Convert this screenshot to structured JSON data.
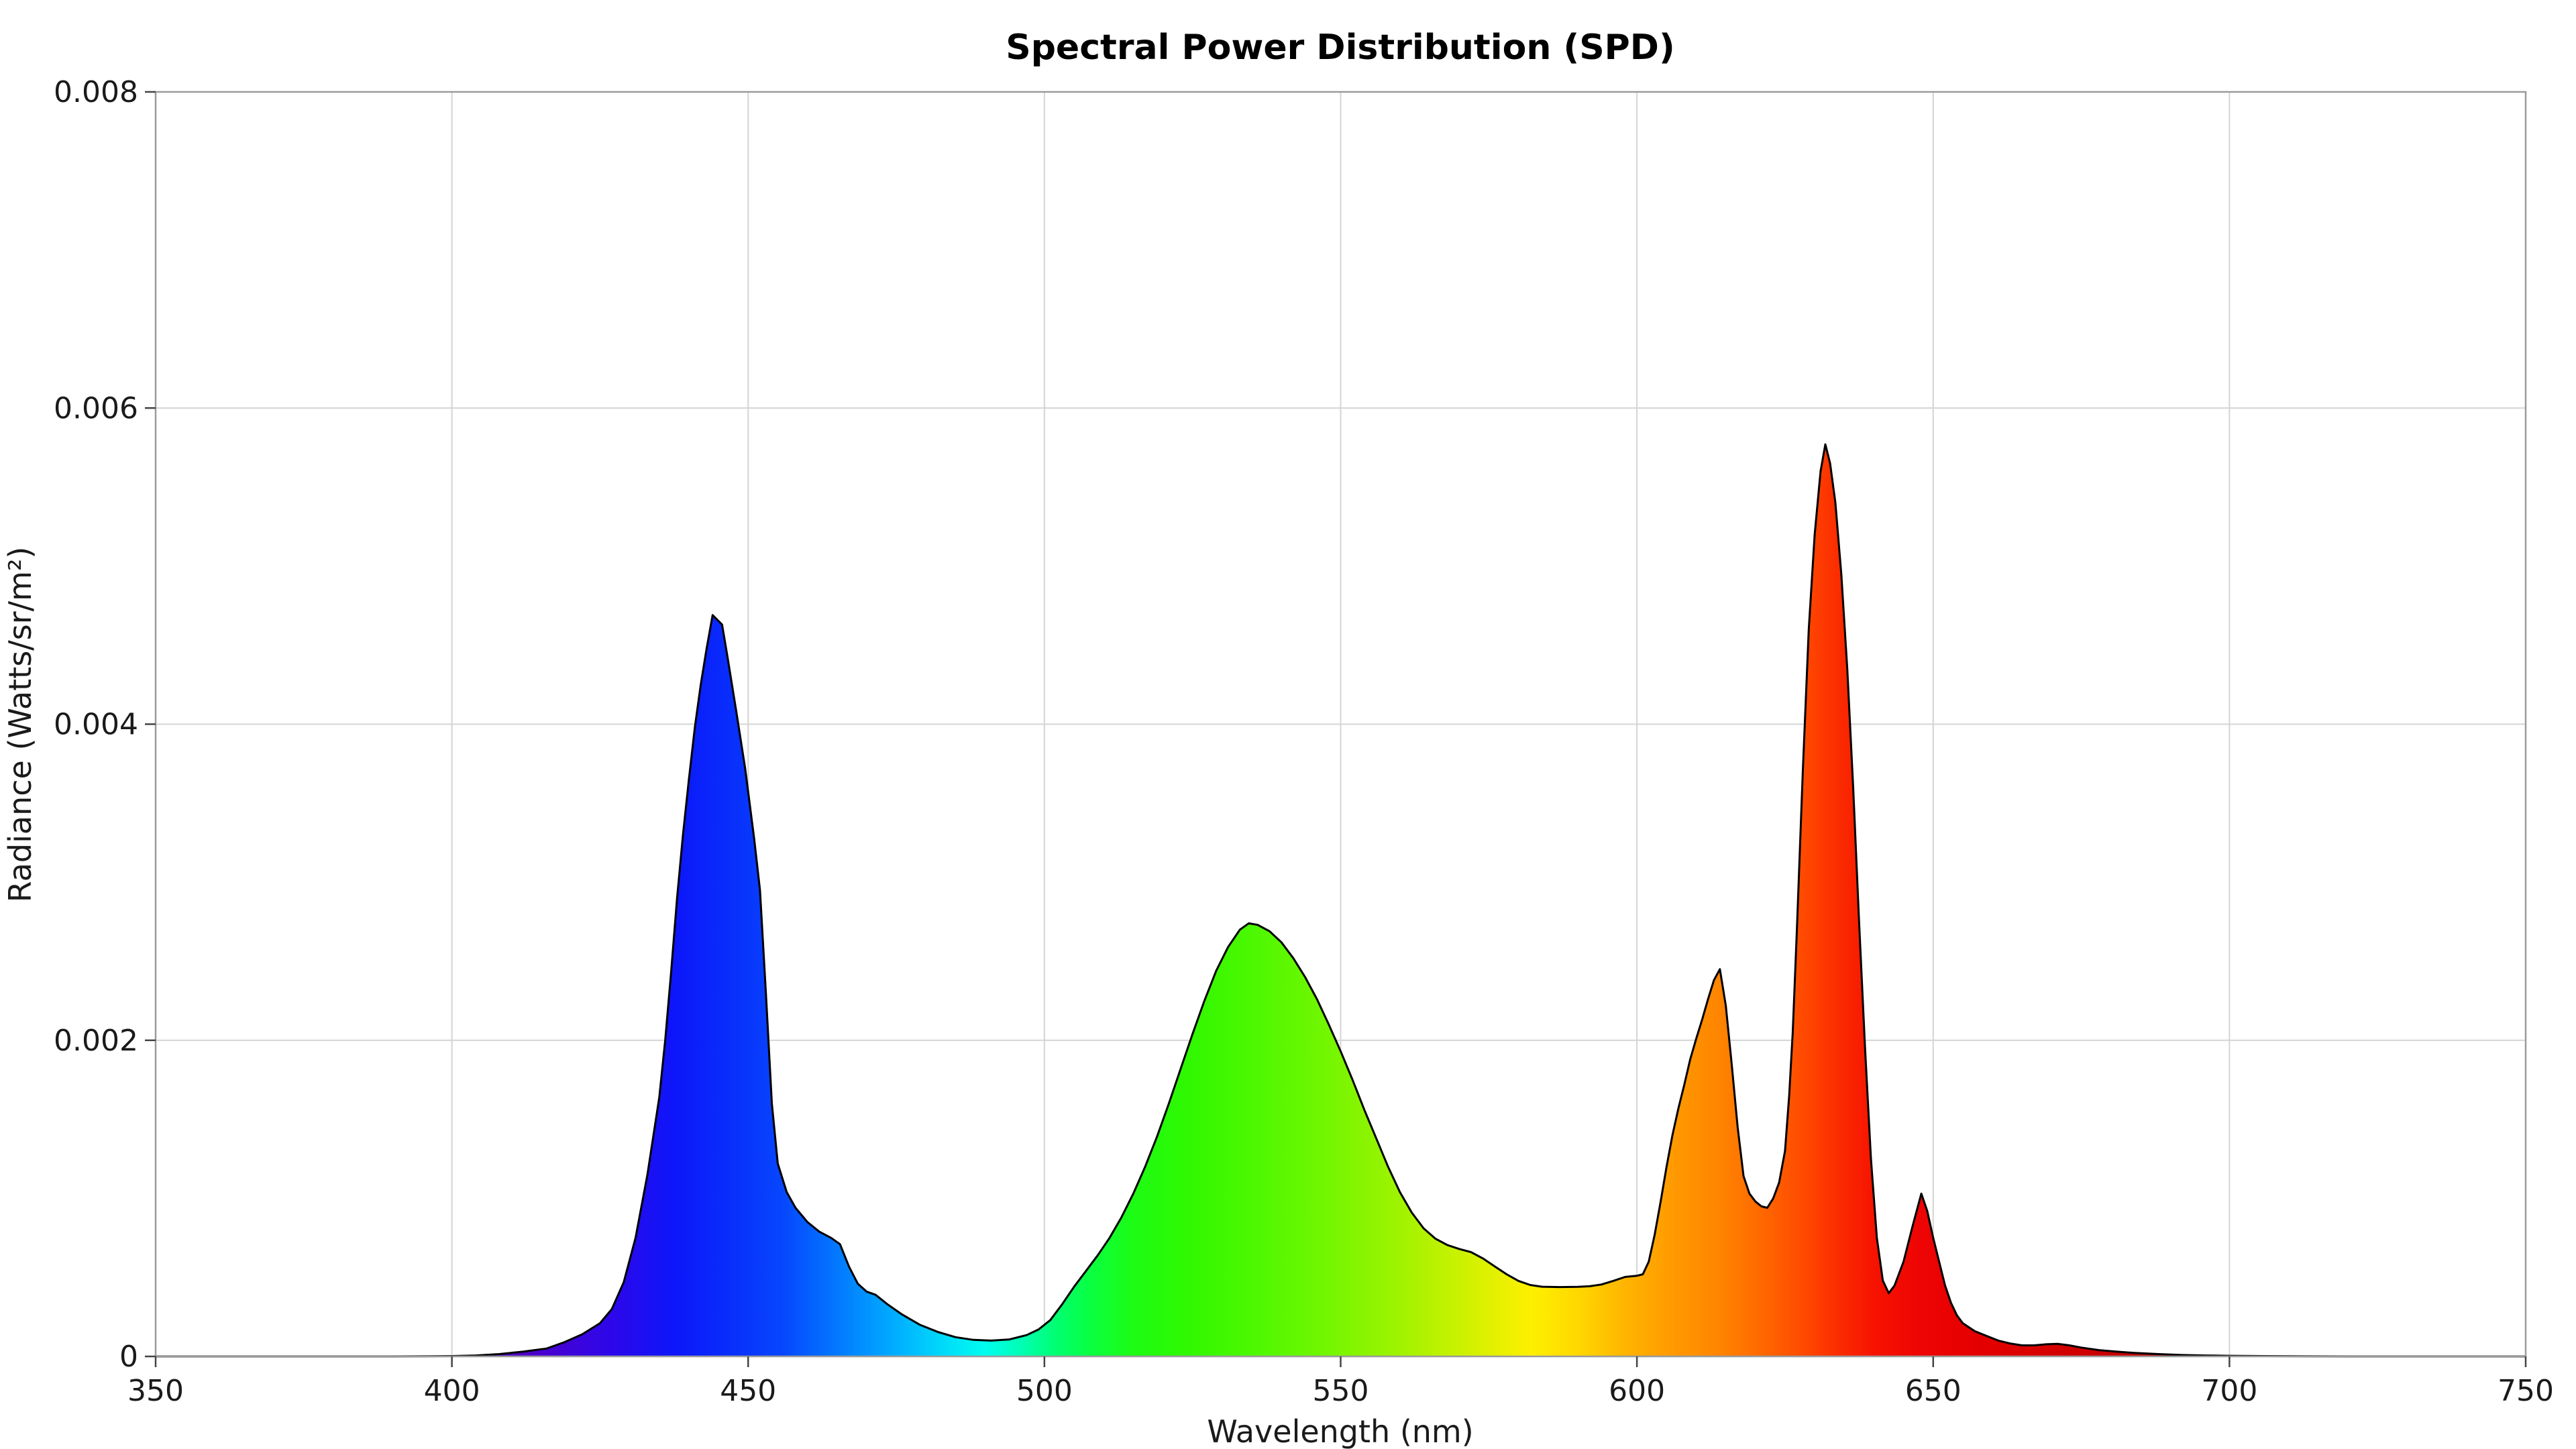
{
  "page": {
    "background": "#ffffff"
  },
  "chart_data": {
    "type": "area",
    "title": "Spectral Power Distribution (SPD)",
    "xlabel": "Wavelength (nm)",
    "ylabel": "Radiance (Watts/sr/m²)",
    "xlim": [
      350,
      750
    ],
    "ylim": [
      0,
      0.008
    ],
    "grid": true,
    "legend": "none",
    "x_ticks": [
      350,
      400,
      450,
      500,
      550,
      600,
      650,
      700,
      750
    ],
    "x_tick_labels": [
      "350",
      "400",
      "450",
      "500",
      "550",
      "600",
      "650",
      "700",
      "750"
    ],
    "y_ticks": [
      0,
      0.002,
      0.004,
      0.006,
      0.008
    ],
    "y_tick_labels": [
      "0",
      "0.002",
      "0.004",
      "0.006",
      "0.008"
    ],
    "line_color": "#000000",
    "grid_color": "#d4d4d4",
    "spine_color": "#9b9b9b",
    "tick_color": "#444444",
    "text_color": "#1a1a1a",
    "peaks": [
      {
        "nm": 444,
        "value": 0.00469
      },
      {
        "nm": 534.5,
        "value": 0.00274
      },
      {
        "nm": 614,
        "value": 0.00245
      },
      {
        "nm": 631.8,
        "value": 0.00577
      },
      {
        "nm": 648,
        "value": 0.00103
      },
      {
        "nm": 671,
        "value": 8e-05
      }
    ],
    "series": [
      {
        "name": "SPD",
        "x": [
          350,
          390,
          396,
          400,
          404,
          408,
          412,
          416,
          419,
          422,
          425,
          427,
          429,
          431,
          433,
          435,
          436,
          437,
          438,
          439,
          440,
          441,
          442,
          443,
          444,
          445.6,
          446.5,
          448,
          449.5,
          451,
          452,
          453,
          454,
          455,
          456.5,
          458,
          460,
          462,
          464,
          465.5,
          467,
          468.5,
          470,
          471.5,
          473.5,
          476,
          479,
          482,
          485,
          488,
          491,
          494,
          497,
          499,
          501,
          503,
          505,
          507,
          509,
          511,
          513,
          515,
          517,
          519,
          521,
          523,
          525,
          527,
          529,
          531,
          533,
          534.5,
          536,
          538,
          540,
          542,
          544,
          546,
          548,
          550,
          552,
          554,
          556,
          558,
          560,
          562,
          564,
          566,
          568,
          570,
          572,
          574,
          576,
          578,
          580,
          582,
          584,
          587,
          590,
          592,
          594,
          596,
          598,
          600,
          601,
          602,
          603,
          604,
          605,
          606,
          607,
          608,
          609,
          610,
          611,
          612,
          613,
          614,
          615,
          616,
          617,
          618,
          619,
          620,
          621,
          622,
          623,
          624,
          625,
          625.7,
          626.3,
          627,
          628,
          629,
          630,
          631,
          631.8,
          632.6,
          633.5,
          634.5,
          635.5,
          636.5,
          637.5,
          638.5,
          639.5,
          640.5,
          641.5,
          642.5,
          643.5,
          645,
          646.5,
          648,
          649,
          650,
          651,
          652,
          653,
          654,
          655,
          657,
          659,
          661,
          663,
          665,
          667,
          669,
          671,
          673,
          675,
          678,
          681,
          684,
          688,
          692,
          696,
          700,
          706,
          712,
          720,
          750
        ],
        "y": [
          0,
          0,
          1e-06,
          2e-06,
          6e-06,
          1.5e-05,
          3e-05,
          5e-05,
          9e-05,
          0.00014,
          0.00021,
          0.0003,
          0.00047,
          0.00075,
          0.00115,
          0.00164,
          0.002,
          0.00243,
          0.0029,
          0.0033,
          0.00365,
          0.00398,
          0.00425,
          0.00448,
          0.00469,
          0.00463,
          0.00443,
          0.00408,
          0.00372,
          0.00328,
          0.00295,
          0.0023,
          0.0016,
          0.00122,
          0.00104,
          0.00094,
          0.00085,
          0.00079,
          0.00075,
          0.00071,
          0.00057,
          0.00046,
          0.00041,
          0.00039,
          0.00033,
          0.000265,
          0.0002,
          0.000155,
          0.000122,
          0.000105,
          0.0001,
          0.000107,
          0.000135,
          0.00017,
          0.00023,
          0.00033,
          0.00044,
          0.00054,
          0.00064,
          0.00075,
          0.00088,
          0.00103,
          0.0012,
          0.00139,
          0.0016,
          0.00182,
          0.00204,
          0.00225,
          0.00244,
          0.00259,
          0.0027,
          0.00274,
          0.00273,
          0.00269,
          0.00262,
          0.00252,
          0.0024,
          0.00226,
          0.0021,
          0.00193,
          0.00175,
          0.00156,
          0.00138,
          0.0012,
          0.00104,
          0.00091,
          0.00081,
          0.000745,
          0.000705,
          0.00068,
          0.00066,
          0.00062,
          0.00057,
          0.00052,
          0.000478,
          0.000452,
          0.000441,
          0.000439,
          0.00044,
          0.000444,
          0.000455,
          0.000478,
          0.000503,
          0.00051,
          0.00052,
          0.0006,
          0.00077,
          0.00098,
          0.0012,
          0.0014,
          0.00157,
          0.00172,
          0.00188,
          0.00201,
          0.00213,
          0.00226,
          0.00238,
          0.00245,
          0.00222,
          0.00185,
          0.00145,
          0.00114,
          0.00103,
          0.00098,
          0.00095,
          0.00094,
          0.001,
          0.0011,
          0.0013,
          0.00165,
          0.00205,
          0.0027,
          0.0037,
          0.0046,
          0.0052,
          0.0056,
          0.00577,
          0.00565,
          0.0054,
          0.00495,
          0.00435,
          0.0036,
          0.00275,
          0.00195,
          0.00125,
          0.00075,
          0.00048,
          0.0004,
          0.00045,
          0.0006,
          0.00082,
          0.00103,
          0.00092,
          0.00075,
          0.0006,
          0.00045,
          0.00034,
          0.00026,
          0.00021,
          0.00016,
          0.00013,
          0.0001,
          8.2e-05,
          7e-05,
          7e-05,
          7.7e-05,
          8e-05,
          7e-05,
          5.6e-05,
          4e-05,
          3e-05,
          2.2e-05,
          1.5e-05,
          9e-06,
          6e-06,
          4e-06,
          2e-06,
          1e-06,
          0,
          0
        ]
      }
    ],
    "fill": {
      "type": "spectral-gradient",
      "stops": [
        {
          "nm": 350,
          "color": "#30006a"
        },
        {
          "nm": 400,
          "color": "#5f00a8"
        },
        {
          "nm": 415,
          "color": "#4a00cf"
        },
        {
          "nm": 428,
          "color": "#2a08ec"
        },
        {
          "nm": 438,
          "color": "#0c17fa"
        },
        {
          "nm": 448,
          "color": "#0831fc"
        },
        {
          "nm": 456,
          "color": "#0747fd"
        },
        {
          "nm": 466,
          "color": "#027eff"
        },
        {
          "nm": 476,
          "color": "#00b4ff"
        },
        {
          "nm": 484,
          "color": "#00e0f8"
        },
        {
          "nm": 490,
          "color": "#00fdf0"
        },
        {
          "nm": 496,
          "color": "#00ffb4"
        },
        {
          "nm": 502,
          "color": "#00ff70"
        },
        {
          "nm": 508,
          "color": "#0aff3f"
        },
        {
          "nm": 515,
          "color": "#1dfc14"
        },
        {
          "nm": 524,
          "color": "#2ff800"
        },
        {
          "nm": 535,
          "color": "#4cf800"
        },
        {
          "nm": 548,
          "color": "#74f600"
        },
        {
          "nm": 560,
          "color": "#a0f300"
        },
        {
          "nm": 572,
          "color": "#d2f100"
        },
        {
          "nm": 582,
          "color": "#fdf000"
        },
        {
          "nm": 590,
          "color": "#ffd800"
        },
        {
          "nm": 598,
          "color": "#ffb400"
        },
        {
          "nm": 606,
          "color": "#ff9a00"
        },
        {
          "nm": 614,
          "color": "#ff8400"
        },
        {
          "nm": 622,
          "color": "#ff6400"
        },
        {
          "nm": 628,
          "color": "#ff4a00"
        },
        {
          "nm": 634,
          "color": "#fb2c00"
        },
        {
          "nm": 640,
          "color": "#f61300"
        },
        {
          "nm": 648,
          "color": "#ee0404"
        },
        {
          "nm": 656,
          "color": "#e60000"
        },
        {
          "nm": 666,
          "color": "#da0000"
        },
        {
          "nm": 678,
          "color": "#cb0000"
        },
        {
          "nm": 690,
          "color": "#c00000"
        },
        {
          "nm": 750,
          "color": "#b00000"
        }
      ]
    }
  }
}
